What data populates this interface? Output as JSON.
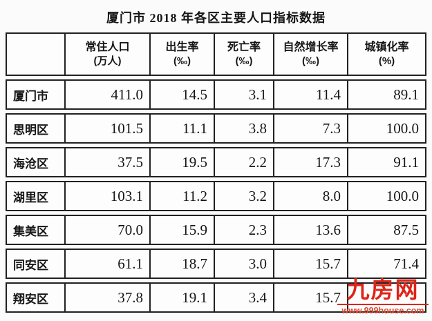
{
  "title": "厦门市 2018 年各区主要人口指标数据",
  "table": {
    "columns": [
      {
        "label": "",
        "unit": ""
      },
      {
        "label": "常住人口",
        "unit": "(万人)"
      },
      {
        "label": "出生率",
        "unit": "(‰)"
      },
      {
        "label": "死亡率",
        "unit": "(‰)"
      },
      {
        "label": "自然增长率",
        "unit": "(‰)"
      },
      {
        "label": "城镇化率",
        "unit": "(%)"
      }
    ],
    "rows": [
      {
        "name": "厦门市",
        "values": [
          "411.0",
          "14.5",
          "3.1",
          "11.4",
          "89.1"
        ]
      },
      {
        "name": "思明区",
        "values": [
          "101.5",
          "11.1",
          "3.8",
          "7.3",
          "100.0"
        ]
      },
      {
        "name": "海沧区",
        "values": [
          "37.5",
          "19.5",
          "2.2",
          "17.3",
          "91.1"
        ]
      },
      {
        "name": "湖里区",
        "values": [
          "103.1",
          "11.2",
          "3.2",
          "8.0",
          "100.0"
        ]
      },
      {
        "name": "集美区",
        "values": [
          "70.0",
          "15.9",
          "2.3",
          "13.6",
          "87.5"
        ]
      },
      {
        "name": "同安区",
        "values": [
          "61.1",
          "18.7",
          "3.0",
          "15.7",
          "71.4"
        ]
      },
      {
        "name": "翔安区",
        "values": [
          "37.8",
          "19.1",
          "3.4",
          "15.7",
          ""
        ]
      }
    ]
  },
  "watermark": {
    "logo": "九房网",
    "url": "www.999house.com",
    "color": "#dd2418"
  },
  "chart_data": {
    "type": "table",
    "title": "厦门市 2018 年各区主要人口指标数据",
    "categories": [
      "厦门市",
      "思明区",
      "海沧区",
      "湖里区",
      "集美区",
      "同安区",
      "翔安区"
    ],
    "series": [
      {
        "name": "常住人口(万人)",
        "values": [
          411.0,
          101.5,
          37.5,
          103.1,
          70.0,
          61.1,
          37.8
        ]
      },
      {
        "name": "出生率(‰)",
        "values": [
          14.5,
          11.1,
          19.5,
          11.2,
          15.9,
          18.7,
          19.1
        ]
      },
      {
        "name": "死亡率(‰)",
        "values": [
          3.1,
          3.8,
          2.2,
          3.2,
          2.3,
          3.0,
          3.4
        ]
      },
      {
        "name": "自然增长率(‰)",
        "values": [
          11.4,
          7.3,
          17.3,
          8.0,
          13.6,
          15.7,
          15.7
        ]
      },
      {
        "name": "城镇化率(%)",
        "values": [
          89.1,
          100.0,
          91.1,
          100.0,
          87.5,
          71.4,
          null
        ]
      }
    ]
  }
}
